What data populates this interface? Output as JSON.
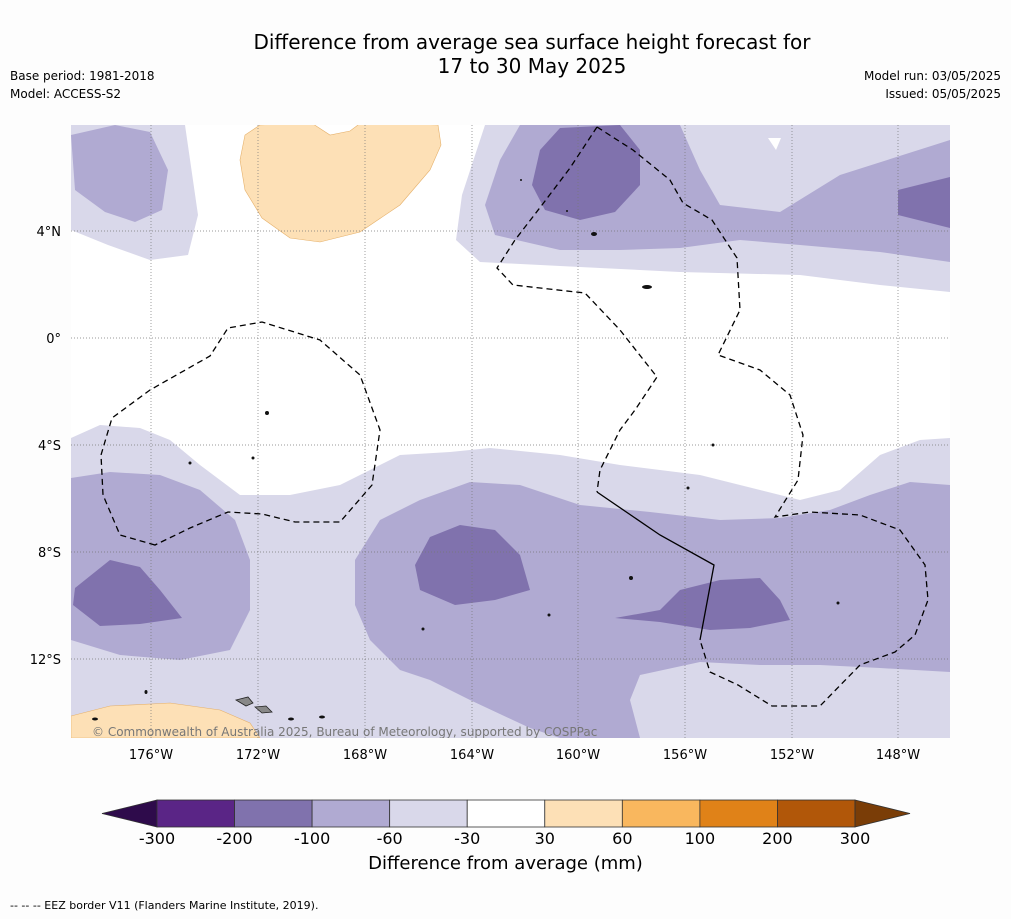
{
  "title": {
    "line1": "Difference from average sea surface height forecast for",
    "line2": "17 to 30 May 2025"
  },
  "meta": {
    "base_period": "Base period: 1981-2018",
    "model": "Model: ACCESS-S2",
    "model_run": "Model run: 03/05/2025",
    "issued": "Issued: 05/05/2025"
  },
  "map": {
    "lat_labels": [
      "4°N",
      "0°",
      "4°S",
      "8°S",
      "12°S"
    ],
    "lon_labels": [
      "176°W",
      "172°W",
      "168°W",
      "164°W",
      "160°W",
      "156°W",
      "152°W",
      "148°W"
    ],
    "copyright": "© Commonwealth of Australia 2025, Bureau of Meteorology, supported by COSPPac"
  },
  "legend": {
    "ticks": [
      "-300",
      "-200",
      "-100",
      "-60",
      "-30",
      "30",
      "60",
      "100",
      "200",
      "300"
    ],
    "colors": [
      "#2e0b4b",
      "#5a2586",
      "#8072ad",
      "#b0aad2",
      "#d9d8ea",
      "#ffffff",
      "#fde0b6",
      "#f9b75e",
      "#e08218",
      "#b15709",
      "#7a3d07"
    ],
    "label": "Difference from average (mm)"
  },
  "footnote": "--  --  -- EEZ border V11 (Flanders Marine Institute, 2019)."
}
